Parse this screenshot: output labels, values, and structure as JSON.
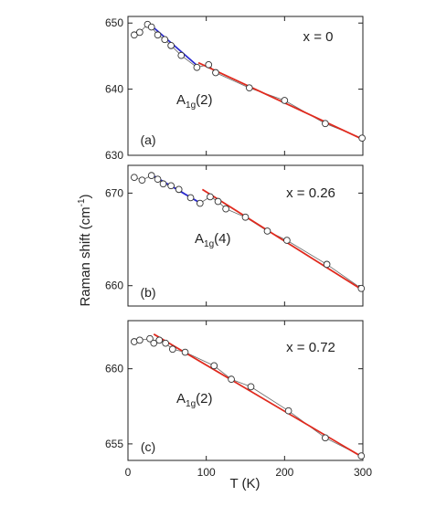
{
  "chart_data": {
    "shared": {
      "xlabel": "T (K)",
      "ylabel": "Raman shift (cm",
      "ylabel_sup": "-1",
      "ylabel_close": ")",
      "xlim": [
        0,
        300
      ],
      "xticks": [
        0,
        100,
        200,
        300
      ],
      "xtick_labels": [
        "0",
        "100",
        "200",
        "300"
      ]
    },
    "panels": [
      {
        "type": "scatter",
        "panel_label": "(a)",
        "composition": "x = 0",
        "mode": {
          "main": "A",
          "sub": "1g",
          "index": "(2)"
        },
        "ylim": [
          630,
          651
        ],
        "yticks": [
          630,
          640,
          650
        ],
        "ytick_labels": [
          "630",
          "640",
          "650"
        ],
        "points": [
          {
            "x": 8,
            "y": 648.2
          },
          {
            "x": 15,
            "y": 648.6
          },
          {
            "x": 25,
            "y": 649.8
          },
          {
            "x": 30,
            "y": 649.4
          },
          {
            "x": 38,
            "y": 648.2
          },
          {
            "x": 47,
            "y": 647.5
          },
          {
            "x": 55,
            "y": 646.6
          },
          {
            "x": 68,
            "y": 645.1
          },
          {
            "x": 88,
            "y": 643.3
          },
          {
            "x": 103,
            "y": 643.7
          },
          {
            "x": 112,
            "y": 642.5
          },
          {
            "x": 155,
            "y": 640.2
          },
          {
            "x": 200,
            "y": 638.3
          },
          {
            "x": 252,
            "y": 634.8
          },
          {
            "x": 299,
            "y": 632.6
          }
        ],
        "fits": [
          {
            "color": "#2a2ad0",
            "x": [
              30,
              90
            ],
            "y": [
              649.6,
              643.4
            ]
          },
          {
            "color": "#e02a1e",
            "x": [
              90,
              300
            ],
            "y": [
              644.0,
              632.4
            ]
          }
        ]
      },
      {
        "type": "scatter",
        "panel_label": "(b)",
        "composition": "x = 0.26",
        "mode": {
          "main": "A",
          "sub": "1g",
          "index": "(4)"
        },
        "ylim": [
          657.8,
          673.0
        ],
        "yticks": [
          660,
          670
        ],
        "ytick_labels": [
          "660",
          "670"
        ],
        "points": [
          {
            "x": 8,
            "y": 671.7
          },
          {
            "x": 18,
            "y": 671.4
          },
          {
            "x": 30,
            "y": 671.9
          },
          {
            "x": 38,
            "y": 671.5
          },
          {
            "x": 45,
            "y": 671.0
          },
          {
            "x": 55,
            "y": 670.8
          },
          {
            "x": 65,
            "y": 670.4
          },
          {
            "x": 80,
            "y": 669.5
          },
          {
            "x": 92,
            "y": 668.9
          },
          {
            "x": 105,
            "y": 669.6
          },
          {
            "x": 115,
            "y": 669.1
          },
          {
            "x": 125,
            "y": 668.3
          },
          {
            "x": 150,
            "y": 667.4
          },
          {
            "x": 178,
            "y": 665.9
          },
          {
            "x": 203,
            "y": 664.9
          },
          {
            "x": 254,
            "y": 662.3
          },
          {
            "x": 298,
            "y": 659.7
          }
        ],
        "fits": [
          {
            "color": "#2a2ad0",
            "x": [
              30,
              95
            ],
            "y": [
              672.0,
              668.8
            ]
          },
          {
            "color": "#e02a1e",
            "x": [
              95,
              300
            ],
            "y": [
              670.4,
              659.5
            ]
          }
        ]
      },
      {
        "type": "scatter",
        "panel_label": "(c)",
        "composition": "x = 0.72",
        "mode": {
          "main": "A",
          "sub": "1g",
          "index": "(2)"
        },
        "ylim": [
          653.9,
          663.2
        ],
        "yticks": [
          655,
          660
        ],
        "ytick_labels": [
          "655",
          "660"
        ],
        "points": [
          {
            "x": 8,
            "y": 661.8
          },
          {
            "x": 15,
            "y": 661.9
          },
          {
            "x": 28,
            "y": 662.0
          },
          {
            "x": 33,
            "y": 661.7
          },
          {
            "x": 40,
            "y": 661.9
          },
          {
            "x": 48,
            "y": 661.7
          },
          {
            "x": 57,
            "y": 661.3
          },
          {
            "x": 73,
            "y": 661.1
          },
          {
            "x": 110,
            "y": 660.2
          },
          {
            "x": 132,
            "y": 659.3
          },
          {
            "x": 157,
            "y": 658.8
          },
          {
            "x": 205,
            "y": 657.2
          },
          {
            "x": 252,
            "y": 655.4
          },
          {
            "x": 298,
            "y": 654.2
          }
        ],
        "fits": [
          {
            "color": "#e02a1e",
            "x": [
              33,
              300
            ],
            "y": [
              662.3,
              654.1
            ]
          }
        ]
      }
    ]
  }
}
